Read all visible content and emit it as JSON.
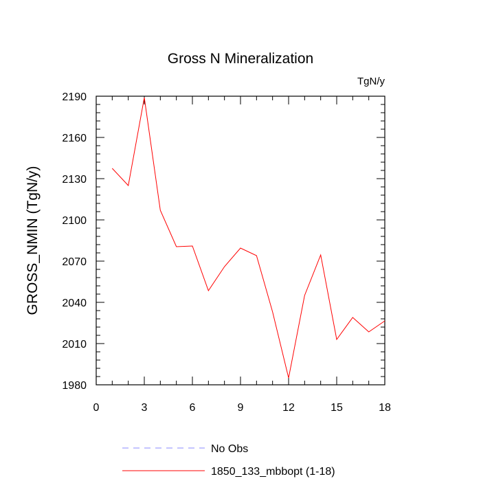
{
  "chart_data": {
    "type": "line",
    "title": "Gross N Mineralization",
    "units_label": "TgN/y",
    "xlabel": "",
    "ylabel": "GROSS_NMIN  (TgN/y)",
    "xlim": [
      0,
      18
    ],
    "ylim": [
      1980,
      2190
    ],
    "xticks": [
      0,
      3,
      6,
      9,
      12,
      15,
      18
    ],
    "yticks": [
      1980,
      2010,
      2040,
      2070,
      2100,
      2130,
      2160,
      2190
    ],
    "xtick_labels": [
      "0",
      "3",
      "6",
      "9",
      "12",
      "15",
      "18"
    ],
    "ytick_labels": [
      "1980",
      "2010",
      "2040",
      "2070",
      "2100",
      "2130",
      "2160",
      "2190"
    ],
    "series": [
      {
        "name": "1850_133_mbbopt (1-18)",
        "color": "#ff0000",
        "x": [
          1,
          2,
          3,
          4,
          5,
          6,
          7,
          8,
          9,
          10,
          11,
          12,
          13,
          14,
          15,
          16,
          17,
          18
        ],
        "y": [
          2137.5,
          2125,
          2189,
          2107,
          2080.5,
          2081,
          2048.5,
          2066,
          2079.5,
          2074,
          2033,
          1985,
          2045,
          2074.5,
          2013,
          2029,
          2018.5,
          2026.5
        ]
      }
    ],
    "legend": [
      {
        "label": "No Obs",
        "color": "#8a8aff",
        "style": "dashed"
      },
      {
        "label": "1850_133_mbbopt (1-18)",
        "color": "#ff0000",
        "style": "solid"
      }
    ]
  }
}
